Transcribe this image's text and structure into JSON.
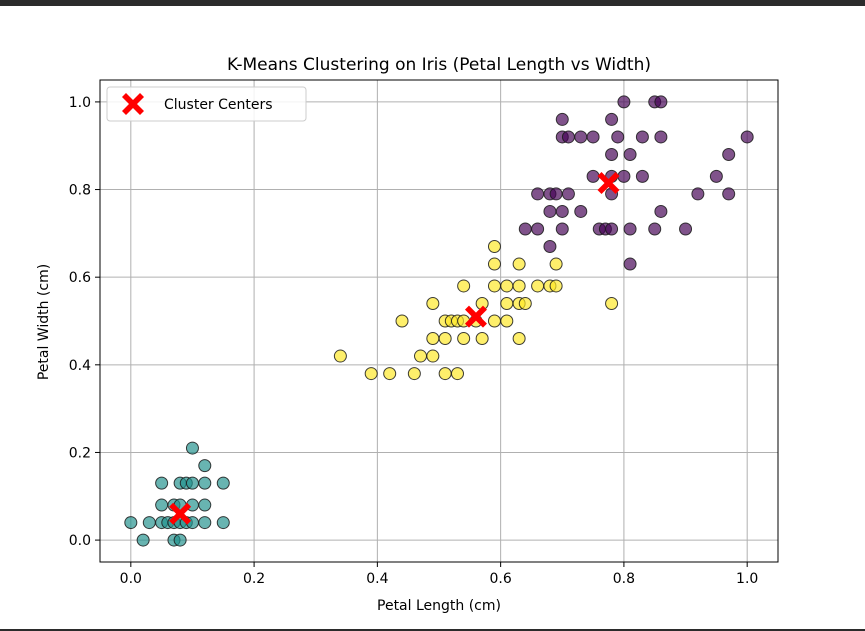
{
  "chart_data": {
    "type": "scatter",
    "title": "K-Means Clustering on Iris (Petal Length vs Width)",
    "xlabel": "Petal Length (cm)",
    "ylabel": "Petal Width (cm)",
    "xlim": [
      -0.05,
      1.05
    ],
    "ylim": [
      -0.05,
      1.05
    ],
    "xticks": [
      "0.0",
      "0.2",
      "0.4",
      "0.6",
      "0.8",
      "1.0"
    ],
    "yticks": [
      "0.0",
      "0.2",
      "0.4",
      "0.6",
      "0.8",
      "1.0"
    ],
    "grid": true,
    "legend": {
      "position": "top-left",
      "entries": [
        "Cluster Centers"
      ]
    },
    "colors": {
      "cluster_0": "#440154",
      "cluster_1": "#21918c",
      "cluster_2": "#fde725",
      "centers": "#ff0000"
    },
    "series": [
      {
        "cluster": 0,
        "points": [
          [
            0.78,
            0.96
          ],
          [
            0.8,
            1.0
          ],
          [
            0.85,
            1.0
          ],
          [
            0.86,
            1.0
          ],
          [
            0.7,
            0.96
          ],
          [
            0.7,
            0.92
          ],
          [
            0.71,
            0.92
          ],
          [
            0.73,
            0.92
          ],
          [
            0.75,
            0.92
          ],
          [
            0.79,
            0.92
          ],
          [
            0.83,
            0.92
          ],
          [
            0.86,
            0.92
          ],
          [
            1.0,
            0.92
          ],
          [
            0.78,
            0.88
          ],
          [
            0.81,
            0.88
          ],
          [
            0.97,
            0.88
          ],
          [
            0.75,
            0.83
          ],
          [
            0.78,
            0.83
          ],
          [
            0.8,
            0.83
          ],
          [
            0.83,
            0.83
          ],
          [
            0.95,
            0.83
          ],
          [
            0.66,
            0.79
          ],
          [
            0.68,
            0.79
          ],
          [
            0.69,
            0.79
          ],
          [
            0.71,
            0.79
          ],
          [
            0.78,
            0.79
          ],
          [
            0.92,
            0.79
          ],
          [
            0.97,
            0.79
          ],
          [
            0.68,
            0.75
          ],
          [
            0.7,
            0.75
          ],
          [
            0.73,
            0.75
          ],
          [
            0.86,
            0.75
          ],
          [
            0.64,
            0.71
          ],
          [
            0.66,
            0.71
          ],
          [
            0.7,
            0.71
          ],
          [
            0.76,
            0.71
          ],
          [
            0.77,
            0.71
          ],
          [
            0.78,
            0.71
          ],
          [
            0.81,
            0.71
          ],
          [
            0.85,
            0.71
          ],
          [
            0.9,
            0.71
          ],
          [
            0.68,
            0.67
          ],
          [
            0.81,
            0.63
          ]
        ]
      },
      {
        "cluster": 1,
        "points": [
          [
            0.1,
            0.21
          ],
          [
            0.12,
            0.17
          ],
          [
            0.05,
            0.13
          ],
          [
            0.08,
            0.13
          ],
          [
            0.09,
            0.13
          ],
          [
            0.1,
            0.13
          ],
          [
            0.12,
            0.13
          ],
          [
            0.15,
            0.13
          ],
          [
            0.05,
            0.08
          ],
          [
            0.07,
            0.08
          ],
          [
            0.08,
            0.08
          ],
          [
            0.1,
            0.08
          ],
          [
            0.12,
            0.08
          ],
          [
            0.0,
            0.04
          ],
          [
            0.03,
            0.04
          ],
          [
            0.05,
            0.04
          ],
          [
            0.06,
            0.04
          ],
          [
            0.07,
            0.04
          ],
          [
            0.08,
            0.04
          ],
          [
            0.09,
            0.04
          ],
          [
            0.1,
            0.04
          ],
          [
            0.12,
            0.04
          ],
          [
            0.15,
            0.04
          ],
          [
            0.02,
            0.0
          ],
          [
            0.07,
            0.0
          ],
          [
            0.08,
            0.0
          ]
        ]
      },
      {
        "cluster": 2,
        "points": [
          [
            0.59,
            0.67
          ],
          [
            0.59,
            0.63
          ],
          [
            0.63,
            0.63
          ],
          [
            0.69,
            0.63
          ],
          [
            0.54,
            0.58
          ],
          [
            0.59,
            0.58
          ],
          [
            0.61,
            0.58
          ],
          [
            0.63,
            0.58
          ],
          [
            0.66,
            0.58
          ],
          [
            0.68,
            0.58
          ],
          [
            0.69,
            0.58
          ],
          [
            0.49,
            0.54
          ],
          [
            0.57,
            0.54
          ],
          [
            0.61,
            0.54
          ],
          [
            0.63,
            0.54
          ],
          [
            0.64,
            0.54
          ],
          [
            0.78,
            0.54
          ],
          [
            0.44,
            0.5
          ],
          [
            0.51,
            0.5
          ],
          [
            0.52,
            0.5
          ],
          [
            0.53,
            0.5
          ],
          [
            0.54,
            0.5
          ],
          [
            0.56,
            0.5
          ],
          [
            0.59,
            0.5
          ],
          [
            0.61,
            0.5
          ],
          [
            0.49,
            0.46
          ],
          [
            0.51,
            0.46
          ],
          [
            0.54,
            0.46
          ],
          [
            0.57,
            0.46
          ],
          [
            0.63,
            0.46
          ],
          [
            0.34,
            0.42
          ],
          [
            0.47,
            0.42
          ],
          [
            0.49,
            0.42
          ],
          [
            0.39,
            0.38
          ],
          [
            0.42,
            0.38
          ],
          [
            0.46,
            0.38
          ],
          [
            0.51,
            0.38
          ],
          [
            0.53,
            0.38
          ]
        ]
      }
    ],
    "centers": [
      [
        0.08,
        0.06
      ],
      [
        0.56,
        0.51
      ],
      [
        0.775,
        0.815
      ]
    ]
  }
}
